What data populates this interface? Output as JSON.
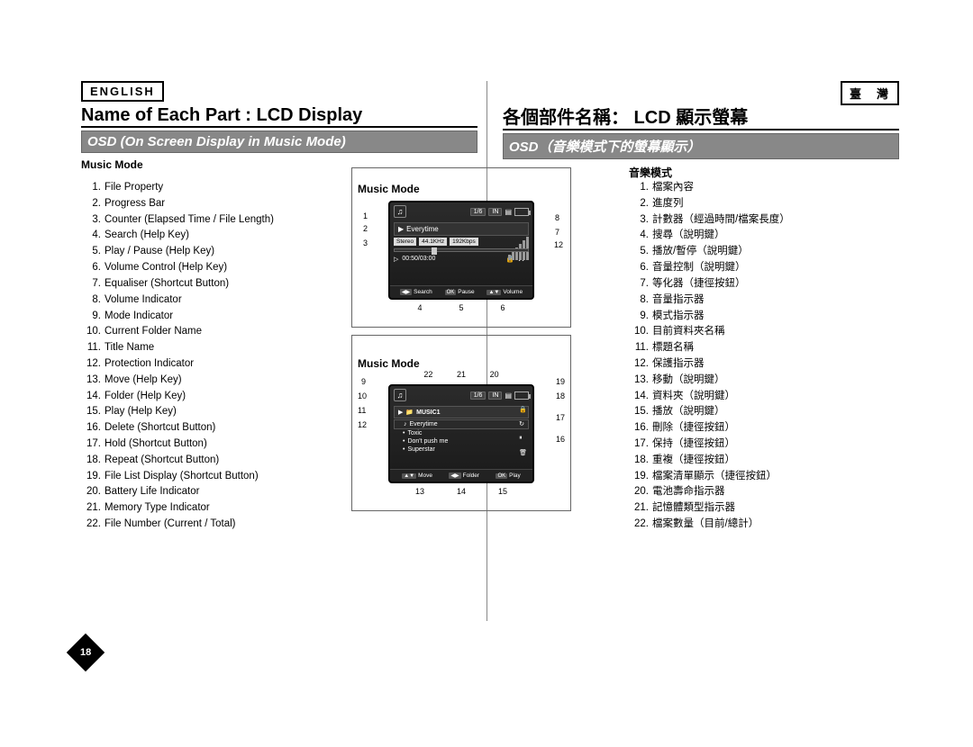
{
  "lang": {
    "left": "ENGLISH",
    "right": "臺　灣"
  },
  "title": {
    "left": "Name of Each Part : LCD Display",
    "right": "各個部件名稱： LCD 顯示螢幕"
  },
  "subtitle": {
    "left": "OSD (On Screen Display in Music Mode)",
    "right": "OSD（音樂模式下的螢幕顯示）"
  },
  "mode": {
    "en": "Music Mode",
    "zh": "音樂模式"
  },
  "items_en": [
    "File Property",
    "Progress Bar",
    "Counter (Elapsed Time / File Length)",
    "Search (Help Key)",
    "Play / Pause (Help Key)",
    "Volume Control (Help Key)",
    "Equaliser (Shortcut Button)",
    "Volume Indicator",
    "Mode Indicator",
    "Current Folder Name",
    "Title Name",
    "Protection Indicator",
    "Move (Help Key)",
    "Folder (Help Key)",
    "Play (Help Key)",
    "Delete (Shortcut Button)",
    "Hold (Shortcut Button)",
    "Repeat (Shortcut Button)",
    "File List Display (Shortcut Button)",
    "Battery Life Indicator",
    "Memory Type Indicator",
    "File Number (Current / Total)"
  ],
  "items_zh": [
    "檔案內容",
    "進度列",
    "計數器（經過時間/檔案長度）",
    "搜尋（說明鍵）",
    "播放/暫停（說明鍵）",
    "音量控制（說明鍵）",
    "等化器（捷徑按鈕）",
    "音量指示器",
    "模式指示器",
    "目前資料夾名稱",
    "標題名稱",
    "保護指示器",
    "移動（說明鍵）",
    "資料夾（說明鍵）",
    "播放（說明鍵）",
    "刪除（捷徑按鈕）",
    "保持（捷徑按鈕）",
    "重複（捷徑按鈕）",
    "檔案清單顯示（捷徑按鈕）",
    "電池壽命指示器",
    "記憶體類型指示器",
    "檔案數量（目前/總計）"
  ],
  "lcd1": {
    "file_num": "1/6",
    "mem": "IN",
    "track": "Everytime",
    "tags": [
      "Stereo",
      "44.1KHz",
      "192Kbps"
    ],
    "counter": "00:50/03:00",
    "bottom": {
      "k1": "Search",
      "k2": "Pause",
      "k2key": "OK",
      "k3": "Volume"
    }
  },
  "lcd2": {
    "file_num": "1/6",
    "mem": "IN",
    "folder": "MUSIC1",
    "tracks": [
      "Everytime",
      "Toxic",
      "Don't push me",
      "Superstar"
    ],
    "bottom": {
      "k1": "Move",
      "k2": "Folder",
      "k3": "Play",
      "k3key": "OK"
    }
  },
  "callouts1": {
    "left": [
      "1",
      "2",
      "3"
    ],
    "right": [
      "8",
      "7",
      "12"
    ],
    "bottom": [
      "4",
      "5",
      "6"
    ]
  },
  "callouts2": {
    "left": [
      "9",
      "10",
      "11",
      "12"
    ],
    "right": [
      "19",
      "18",
      "17",
      "16"
    ],
    "top": [
      "22",
      "21",
      "20"
    ],
    "bottom": [
      "13",
      "14",
      "15"
    ]
  },
  "page_num": "18",
  "colors": {
    "bar": "#888888",
    "text": "#000000",
    "lcd_bg": "#1f1f1f"
  }
}
